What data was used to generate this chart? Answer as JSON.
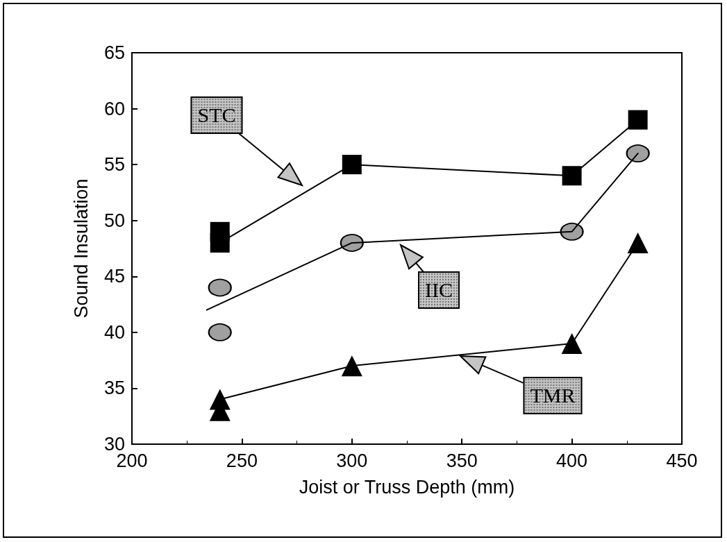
{
  "chart_data": {
    "type": "line",
    "xlabel": "Joist or Truss Depth (mm)",
    "ylabel": "Sound Insulation",
    "xlim": [
      200,
      450
    ],
    "xticks": [
      200,
      250,
      300,
      350,
      400,
      450
    ],
    "ylim": [
      30,
      65
    ],
    "yticks": [
      30,
      35,
      40,
      45,
      50,
      55,
      60,
      65
    ],
    "grid": false,
    "series": [
      {
        "type": "scatter",
        "marker": "square",
        "color": "#000000",
        "x": [
          240,
          240,
          300,
          400,
          430
        ],
        "values": [
          49,
          48,
          55,
          54,
          59
        ]
      },
      {
        "marker": "none",
        "color": "#000000",
        "x": [
          240,
          300,
          400,
          430
        ],
        "values": [
          48,
          55,
          54,
          59
        ]
      },
      {
        "type": "scatter",
        "marker": "circle",
        "color": "#a0a0a0",
        "x": [
          240,
          240,
          300,
          400,
          430
        ],
        "values": [
          44,
          40,
          48,
          49,
          56
        ]
      },
      {
        "marker": "none",
        "color": "#000000",
        "x": [
          234,
          300,
          400,
          430
        ],
        "values": [
          42,
          48,
          49,
          56
        ]
      },
      {
        "type": "scatter",
        "marker": "triangle",
        "color": "#000000",
        "x": [
          240,
          240,
          300,
          400,
          430
        ],
        "values": [
          34,
          33,
          37,
          39,
          48
        ]
      },
      {
        "marker": "none",
        "color": "#000000",
        "x": [
          240,
          300,
          400,
          430
        ],
        "values": [
          34,
          37,
          39,
          48
        ]
      }
    ],
    "annotations": [
      "STC",
      "IIC",
      "TMR"
    ]
  }
}
